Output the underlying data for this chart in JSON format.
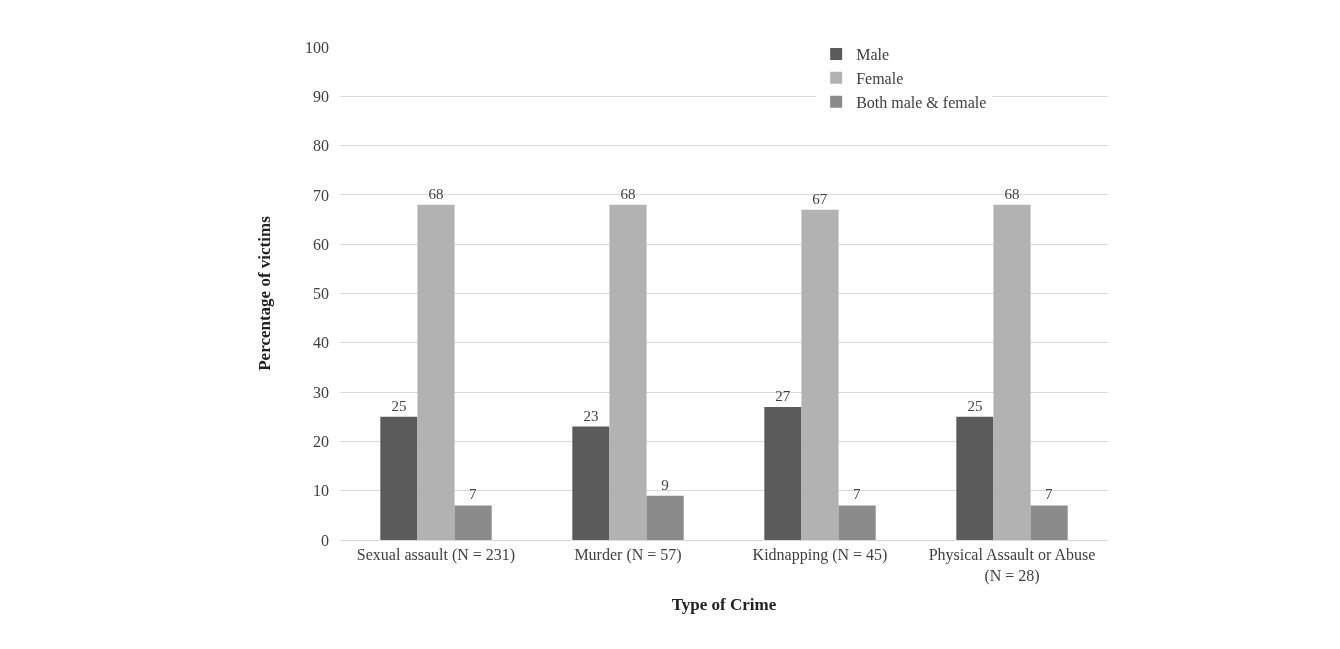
{
  "chart_data": {
    "type": "bar",
    "xlabel": "Type of Crime",
    "ylabel": "Percentage of victims",
    "categories": [
      "Sexual assault (N = 231)",
      "Murder (N = 57)",
      "Kidnapping (N = 45)",
      "Physical Assault or Abuse (N = 28)"
    ],
    "series": [
      {
        "name": "Male",
        "color": "#5b5b5b",
        "values": [
          25,
          23,
          27,
          25
        ]
      },
      {
        "name": "Female",
        "color": "#b2b2b2",
        "values": [
          68,
          68,
          67,
          68
        ]
      },
      {
        "name": "Both male & female",
        "color": "#8a8a8a",
        "values": [
          7,
          9,
          7,
          7
        ]
      }
    ],
    "ylim": [
      0,
      100
    ],
    "yticks": [
      0,
      10,
      20,
      30,
      40,
      50,
      60,
      70,
      80,
      90,
      100
    ],
    "grid": "y",
    "legend": "top right",
    "data_labels": true
  }
}
